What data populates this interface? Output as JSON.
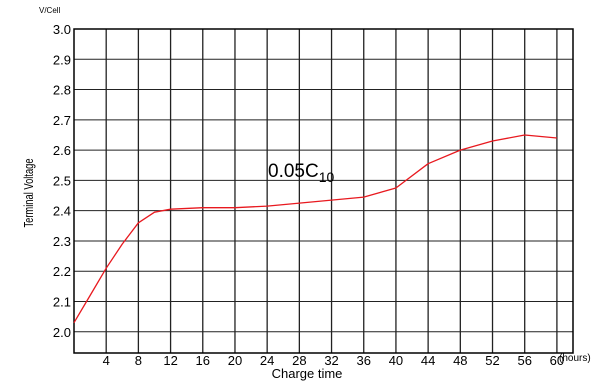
{
  "chart_data": {
    "type": "line",
    "title": "",
    "ylabel": "Terminal Voltage",
    "yunit": "V/Cell",
    "xlabel": "Charge time",
    "xunit": "(hours)",
    "annotation": {
      "text": "0.05C",
      "subscript": "10"
    },
    "xlim": [
      0,
      62
    ],
    "ylim": [
      1.93,
      3.0
    ],
    "grid": true,
    "x_ticks": [
      4,
      8,
      12,
      16,
      20,
      24,
      28,
      32,
      36,
      40,
      44,
      48,
      52,
      56,
      60
    ],
    "y_ticks": [
      2.0,
      2.1,
      2.2,
      2.3,
      2.4,
      2.5,
      2.6,
      2.7,
      2.8,
      2.9,
      3.0
    ],
    "y_tick_labels": [
      "2.0",
      "2.1",
      "2.2",
      "2.3",
      "2.4",
      "2.5",
      "2.6",
      "2.7",
      "2.8",
      "2.9",
      "3.0"
    ],
    "series": [
      {
        "color": "#e8191f",
        "x": [
          0,
          2,
          4,
          6,
          8,
          10,
          11,
          12,
          16,
          20,
          24,
          28,
          32,
          36,
          40,
          44,
          48,
          52,
          56,
          60
        ],
        "y": [
          2.03,
          2.12,
          2.21,
          2.29,
          2.36,
          2.395,
          2.4,
          2.405,
          2.41,
          2.41,
          2.415,
          2.425,
          2.435,
          2.445,
          2.475,
          2.555,
          2.6,
          2.63,
          2.65,
          2.64
        ]
      }
    ]
  }
}
